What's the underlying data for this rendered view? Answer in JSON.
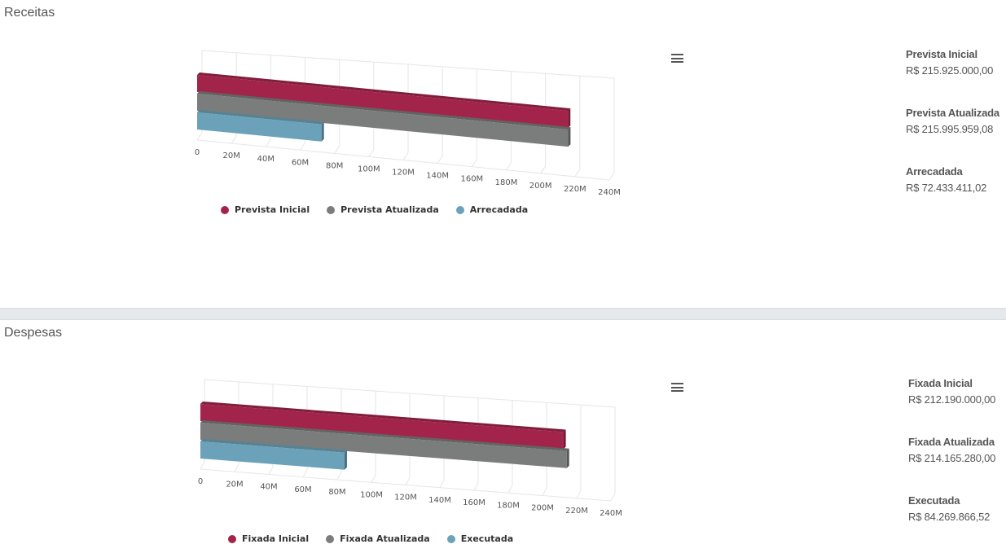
{
  "panels": [
    {
      "title": "Receitas",
      "summary": [
        {
          "label": "Prevista Inicial",
          "value": "R$ 215.925.000,00"
        },
        {
          "label": "Prevista Atualizada",
          "value": "R$ 215.995.959,08"
        },
        {
          "label": "Arrecadada",
          "value": "R$ 72.433.411,02"
        }
      ]
    },
    {
      "title": "Despesas",
      "summary": [
        {
          "label": "Fixada Inicial",
          "value": "R$ 212.190.000,00"
        },
        {
          "label": "Fixada Atualizada",
          "value": "R$ 214.165.280,00"
        },
        {
          "label": "Executada",
          "value": "R$ 84.269.866,52"
        }
      ]
    }
  ],
  "colors": {
    "series_1": "#a3244a",
    "series_2": "#7a7d7c",
    "series_3": "#6ba2b9",
    "separator": "#e6e9ec"
  },
  "icons": {
    "menu": "hamburger-menu-icon"
  },
  "chart_data": [
    {
      "type": "bar",
      "orientation": "horizontal",
      "three_d": true,
      "title": "",
      "xlim": [
        0,
        240000000
      ],
      "x_ticks": [
        "0",
        "20M",
        "40M",
        "60M",
        "80M",
        "100M",
        "120M",
        "140M",
        "160M",
        "180M",
        "200M",
        "220M",
        "240M"
      ],
      "grid": true,
      "legend_position": "bottom",
      "series": [
        {
          "name": "Prevista Inicial",
          "values": [
            215925000.0
          ]
        },
        {
          "name": "Prevista Atualizada",
          "values": [
            215995959.08
          ]
        },
        {
          "name": "Arrecadada",
          "values": [
            72433411.02
          ]
        }
      ]
    },
    {
      "type": "bar",
      "orientation": "horizontal",
      "three_d": true,
      "title": "",
      "xlim": [
        0,
        240000000
      ],
      "x_ticks": [
        "0",
        "20M",
        "40M",
        "60M",
        "80M",
        "100M",
        "120M",
        "140M",
        "160M",
        "180M",
        "200M",
        "220M",
        "240M"
      ],
      "grid": true,
      "legend_position": "bottom",
      "series": [
        {
          "name": "Fixada Inicial",
          "values": [
            212190000.0
          ]
        },
        {
          "name": "Fixada Atualizada",
          "values": [
            214165280.0
          ]
        },
        {
          "name": "Executada",
          "values": [
            84269866.52
          ]
        }
      ]
    }
  ]
}
